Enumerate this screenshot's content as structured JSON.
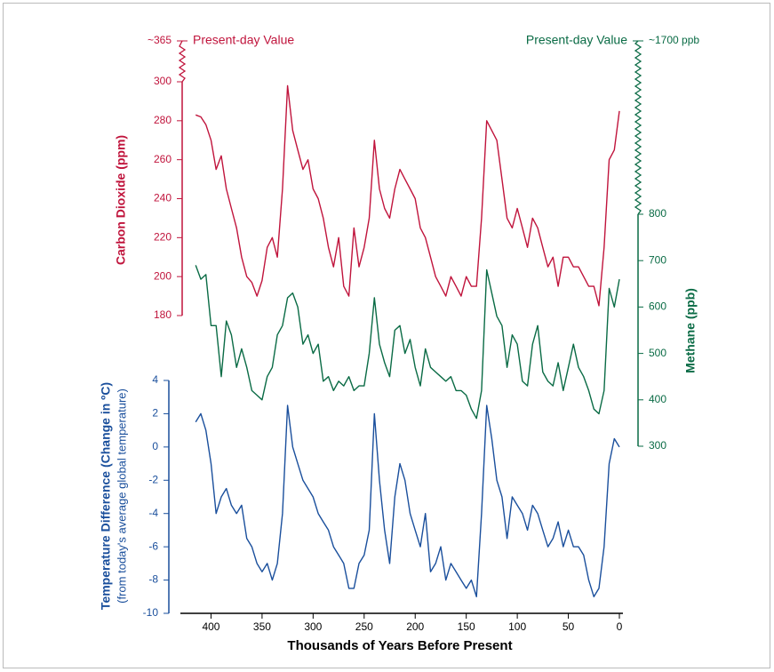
{
  "chart_data": {
    "type": "line",
    "x_label": "Thousands of Years Before Present",
    "x": [
      415,
      410,
      405,
      400,
      395,
      390,
      385,
      380,
      375,
      370,
      365,
      360,
      355,
      350,
      345,
      340,
      335,
      330,
      325,
      320,
      315,
      310,
      305,
      300,
      295,
      290,
      285,
      280,
      275,
      270,
      265,
      260,
      255,
      250,
      245,
      240,
      235,
      230,
      225,
      220,
      215,
      210,
      205,
      200,
      195,
      190,
      185,
      180,
      175,
      170,
      165,
      160,
      155,
      150,
      145,
      140,
      135,
      130,
      125,
      120,
      115,
      110,
      105,
      100,
      95,
      90,
      85,
      80,
      75,
      70,
      65,
      60,
      55,
      50,
      45,
      40,
      35,
      30,
      25,
      20,
      15,
      10,
      5,
      0
    ],
    "xlim": [
      430,
      0
    ],
    "xticks": [
      400,
      350,
      300,
      250,
      200,
      150,
      100,
      50,
      0
    ],
    "series": [
      {
        "name": "Carbon Dioxide (ppm)",
        "color": "#c0143c",
        "ylim": [
          180,
          300
        ],
        "yticks": [
          180,
          200,
          220,
          240,
          260,
          280,
          300
        ],
        "break_label": "~365",
        "break_note": "Present-day Value",
        "values": [
          283,
          282,
          278,
          270,
          255,
          262,
          245,
          235,
          225,
          210,
          200,
          197,
          190,
          198,
          215,
          220,
          210,
          245,
          298,
          275,
          265,
          255,
          260,
          245,
          240,
          230,
          215,
          205,
          220,
          195,
          190,
          225,
          205,
          215,
          230,
          270,
          245,
          235,
          230,
          245,
          255,
          250,
          245,
          240,
          225,
          220,
          210,
          200,
          195,
          190,
          200,
          195,
          190,
          200,
          195,
          195,
          230,
          280,
          275,
          270,
          250,
          230,
          225,
          235,
          225,
          215,
          230,
          225,
          215,
          205,
          210,
          195,
          210,
          210,
          205,
          205,
          200,
          195,
          195,
          185,
          215,
          260,
          265,
          285
        ]
      },
      {
        "name": "Methane (ppb)",
        "color": "#0a6b45",
        "ylim": [
          300,
          800
        ],
        "yticks": [
          300,
          400,
          500,
          600,
          700,
          800
        ],
        "break_label": "~1700 ppb",
        "break_note": "Present-day Value",
        "values": [
          690,
          660,
          670,
          560,
          560,
          450,
          570,
          540,
          470,
          510,
          470,
          420,
          410,
          400,
          450,
          470,
          540,
          560,
          620,
          630,
          600,
          520,
          540,
          500,
          520,
          440,
          450,
          420,
          440,
          430,
          450,
          420,
          430,
          430,
          500,
          620,
          520,
          480,
          450,
          550,
          560,
          500,
          530,
          470,
          430,
          510,
          470,
          460,
          450,
          440,
          450,
          420,
          420,
          410,
          380,
          360,
          420,
          680,
          630,
          580,
          560,
          470,
          540,
          520,
          440,
          430,
          520,
          560,
          460,
          440,
          430,
          480,
          420,
          470,
          520,
          470,
          450,
          420,
          380,
          370,
          420,
          640,
          600,
          660
        ]
      },
      {
        "name": "Temperature Difference (Change in ºC)",
        "subtitle": "(from today's average global temperature)",
        "color": "#1a4f9c",
        "ylim": [
          -10,
          4
        ],
        "yticks": [
          -10,
          -8,
          -6,
          -4,
          -2,
          0,
          2,
          4
        ],
        "values": [
          1.5,
          2,
          1,
          -1,
          -4,
          -3,
          -2.5,
          -3.5,
          -4,
          -3.5,
          -5.5,
          -6,
          -7,
          -7.5,
          -7,
          -8,
          -7,
          -4,
          2.5,
          0,
          -1,
          -2,
          -2.5,
          -3,
          -4,
          -4.5,
          -5,
          -6,
          -6.5,
          -7,
          -8.5,
          -8.5,
          -7,
          -6.5,
          -5,
          2,
          -2,
          -5,
          -7,
          -3,
          -1,
          -2,
          -4,
          -5,
          -6,
          -4,
          -7.5,
          -7,
          -6,
          -8,
          -7,
          -7.5,
          -8,
          -8.5,
          -8,
          -9,
          -4,
          2.5,
          0.5,
          -2,
          -3,
          -5.5,
          -3,
          -3.5,
          -4,
          -5,
          -3.5,
          -4,
          -5,
          -6,
          -5.5,
          -4.5,
          -6,
          -5,
          -6,
          -6,
          -6.5,
          -8,
          -9,
          -8.5,
          -6,
          -1,
          0.5,
          0
        ]
      }
    ]
  }
}
